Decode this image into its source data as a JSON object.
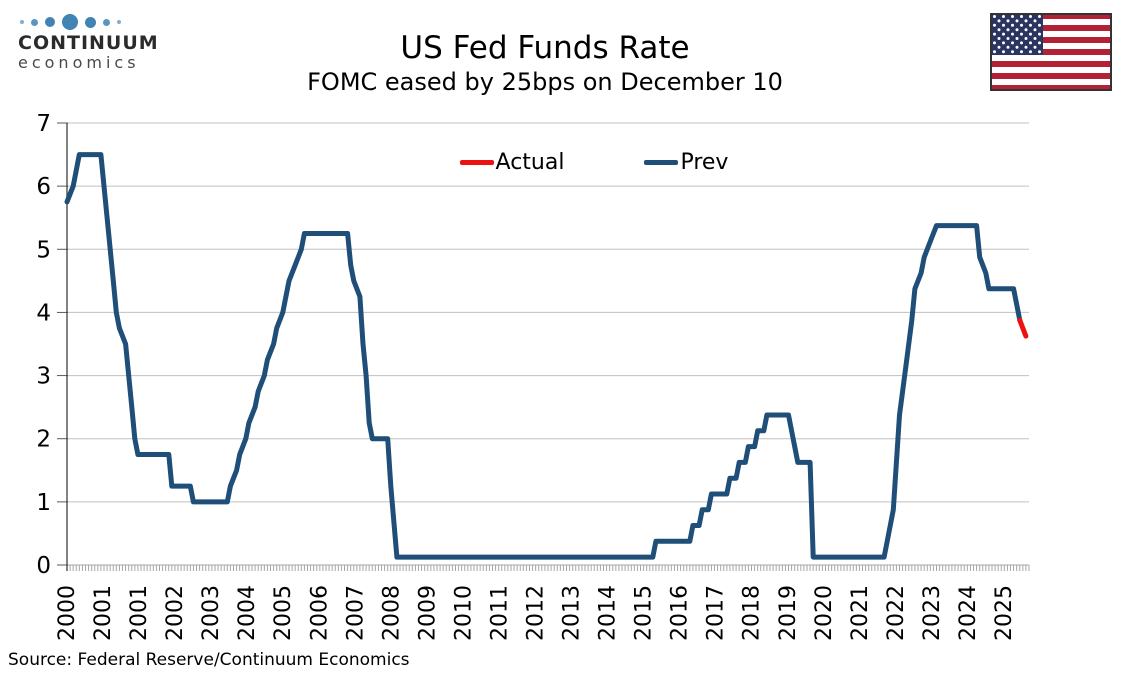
{
  "header": {
    "logo": {
      "line1": "CONTINUUM",
      "line2": "economics",
      "dot_color": "#4183b4",
      "icon": "continuum-dots-logo"
    },
    "title": "US Fed Funds Rate",
    "subtitle": "FOMC eased by 25bps on December 10",
    "flag_icon": "us-flag"
  },
  "footer": {
    "source": "Source: Federal Reserve/Continuum Economics"
  },
  "chart_data": {
    "type": "line",
    "title": "US Fed Funds Rate",
    "subtitle": "FOMC eased by 25bps on December 10",
    "ylabel": "",
    "xlabel": "",
    "ylim": [
      0,
      7
    ],
    "yticks": [
      0,
      1,
      2,
      3,
      4,
      5,
      6,
      7
    ],
    "x_range": [
      2000,
      2026
    ],
    "minor_ticks_per_year": 12,
    "grid": true,
    "legend_position": "top-center",
    "xtick_labels": [
      "2000",
      "2001",
      "2001",
      "2002",
      "2003",
      "2004",
      "2005",
      "2006",
      "2007",
      "2008",
      "2009",
      "2010",
      "2011",
      "2012",
      "2013",
      "2014",
      "2015",
      "2016",
      "2017",
      "2018",
      "2019",
      "2020",
      "2021",
      "2022",
      "2023",
      "2024",
      "2025"
    ],
    "legend": [
      {
        "label": "Actual",
        "color": "#ee1111"
      },
      {
        "label": "Prev",
        "color": "#1f4e79"
      }
    ],
    "series": [
      {
        "name": "Prev",
        "color": "#1f4e79",
        "points": [
          [
            2000.0,
            5.75
          ],
          [
            2000.167,
            6.0
          ],
          [
            2000.333,
            6.5
          ],
          [
            2000.917,
            6.5
          ],
          [
            2001.083,
            5.5
          ],
          [
            2001.167,
            5.0
          ],
          [
            2001.25,
            4.5
          ],
          [
            2001.333,
            4.0
          ],
          [
            2001.417,
            3.75
          ],
          [
            2001.583,
            3.5
          ],
          [
            2001.667,
            3.0
          ],
          [
            2001.75,
            2.5
          ],
          [
            2001.833,
            2.0
          ],
          [
            2001.917,
            1.75
          ],
          [
            2002.75,
            1.75
          ],
          [
            2002.833,
            1.25
          ],
          [
            2003.333,
            1.25
          ],
          [
            2003.417,
            1.0
          ],
          [
            2004.333,
            1.0
          ],
          [
            2004.417,
            1.25
          ],
          [
            2004.583,
            1.5
          ],
          [
            2004.667,
            1.75
          ],
          [
            2004.833,
            2.0
          ],
          [
            2004.917,
            2.25
          ],
          [
            2005.083,
            2.5
          ],
          [
            2005.167,
            2.75
          ],
          [
            2005.333,
            3.0
          ],
          [
            2005.417,
            3.25
          ],
          [
            2005.583,
            3.5
          ],
          [
            2005.667,
            3.75
          ],
          [
            2005.833,
            4.0
          ],
          [
            2005.917,
            4.25
          ],
          [
            2006.0,
            4.5
          ],
          [
            2006.167,
            4.75
          ],
          [
            2006.333,
            5.0
          ],
          [
            2006.417,
            5.25
          ],
          [
            2007.583,
            5.25
          ],
          [
            2007.667,
            4.75
          ],
          [
            2007.75,
            4.5
          ],
          [
            2007.917,
            4.25
          ],
          [
            2008.0,
            3.5
          ],
          [
            2008.083,
            3.0
          ],
          [
            2008.167,
            2.25
          ],
          [
            2008.25,
            2.0
          ],
          [
            2008.667,
            2.0
          ],
          [
            2008.75,
            1.25
          ],
          [
            2008.917,
            0.125
          ],
          [
            2015.833,
            0.125
          ],
          [
            2015.917,
            0.375
          ],
          [
            2016.833,
            0.375
          ],
          [
            2016.917,
            0.625
          ],
          [
            2017.083,
            0.625
          ],
          [
            2017.167,
            0.875
          ],
          [
            2017.333,
            0.875
          ],
          [
            2017.417,
            1.125
          ],
          [
            2017.833,
            1.125
          ],
          [
            2017.917,
            1.375
          ],
          [
            2018.083,
            1.375
          ],
          [
            2018.167,
            1.625
          ],
          [
            2018.333,
            1.625
          ],
          [
            2018.417,
            1.875
          ],
          [
            2018.583,
            1.875
          ],
          [
            2018.667,
            2.125
          ],
          [
            2018.833,
            2.125
          ],
          [
            2018.917,
            2.375
          ],
          [
            2019.5,
            2.375
          ],
          [
            2019.583,
            2.125
          ],
          [
            2019.667,
            1.875
          ],
          [
            2019.75,
            1.625
          ],
          [
            2020.083,
            1.625
          ],
          [
            2020.167,
            0.125
          ],
          [
            2022.083,
            0.125
          ],
          [
            2022.167,
            0.375
          ],
          [
            2022.333,
            0.875
          ],
          [
            2022.417,
            1.625
          ],
          [
            2022.5,
            2.375
          ],
          [
            2022.667,
            3.125
          ],
          [
            2022.833,
            3.875
          ],
          [
            2022.917,
            4.375
          ],
          [
            2023.083,
            4.625
          ],
          [
            2023.167,
            4.875
          ],
          [
            2023.333,
            5.125
          ],
          [
            2023.5,
            5.375
          ],
          [
            2024.583,
            5.375
          ],
          [
            2024.667,
            4.875
          ],
          [
            2024.833,
            4.625
          ],
          [
            2024.917,
            4.375
          ],
          [
            2025.583,
            4.375
          ],
          [
            2025.667,
            4.125
          ],
          [
            2025.75,
            3.875
          ]
        ]
      },
      {
        "name": "Actual",
        "color": "#ee1111",
        "points": [
          [
            2025.75,
            3.875
          ],
          [
            2025.917,
            3.625
          ]
        ]
      }
    ]
  }
}
